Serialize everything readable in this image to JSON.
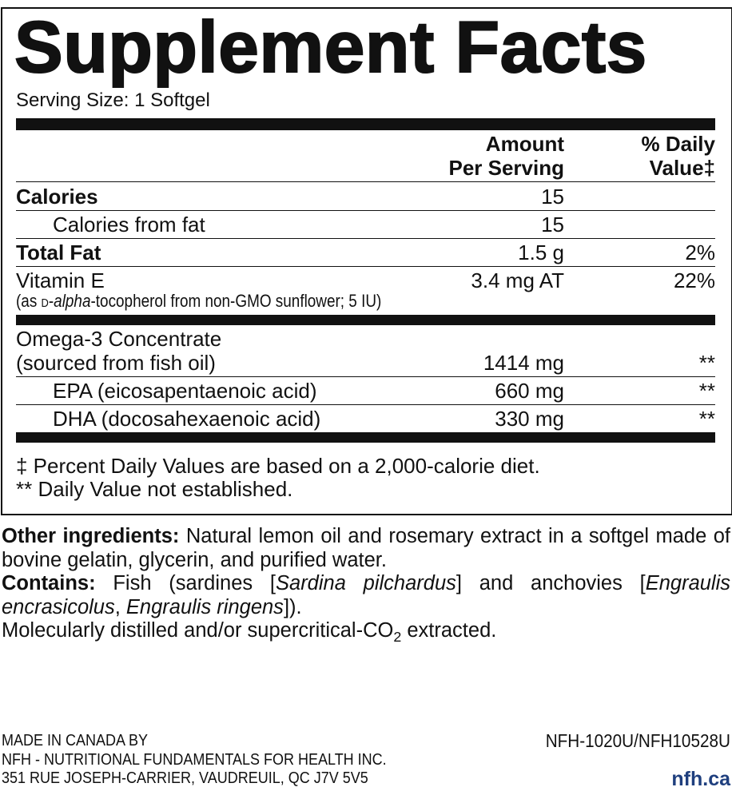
{
  "title": "Supplement Facts",
  "serving_size": "Serving Size: 1 Softgel",
  "columns": {
    "amount": [
      "Amount",
      "Per Serving"
    ],
    "daily_value": [
      "% Daily",
      "Value‡"
    ]
  },
  "rows": [
    {
      "label": [
        "Calories"
      ],
      "amount": "15",
      "bold": true
    },
    {
      "label": [
        "Calories from fat"
      ],
      "amount": "15",
      "indent": true
    },
    {
      "label": [
        "Total Fat"
      ],
      "amount": "1.5 g",
      "daily_value": "2%",
      "bold": true
    },
    {
      "label": [
        "Vitamin E"
      ],
      "amount": "3.4 mg AT",
      "daily_value": "22%",
      "separator": "thick",
      "note": [
        {
          "text": "(as "
        },
        {
          "text": "d",
          "smallcaps": true
        },
        {
          "text": "-"
        },
        {
          "text": "alpha",
          "italic": true
        },
        {
          "text": "-tocopherol from non-GMO sunflower; 5 IU)"
        }
      ]
    },
    {
      "label": [
        "Omega-3 Concentrate",
        "(sourced from fish oil)"
      ],
      "amount": "1414 mg",
      "daily_value": "**"
    },
    {
      "label": [
        "EPA (eicosapentaenoic acid)"
      ],
      "amount": "660 mg",
      "daily_value": "**",
      "indent": true
    },
    {
      "label": [
        "DHA (docosahexaenoic acid)"
      ],
      "amount": "330 mg",
      "daily_value": "**",
      "indent": true,
      "separator": "thick"
    }
  ],
  "footnotes": [
    "‡ Percent Daily Values are based on a 2,000-calorie diet.",
    "** Daily Value not established."
  ],
  "other_ingredients": {
    "label": "Other ingredients:",
    "text": "Natural lemon oil and rosemary extract in a softgel made of bovine gelatin, glycerin, and purified water."
  },
  "contains": {
    "label": "Contains:",
    "segments": [
      {
        "text": "Fish (sardines ["
      },
      {
        "text": "Sardina pilchardus",
        "italic": true
      },
      {
        "text": "] and anchovies ["
      },
      {
        "text": "Engraulis encrasicolus",
        "italic": true
      },
      {
        "text": ", "
      },
      {
        "text": "Engraulis ringens",
        "italic": true
      },
      {
        "text": "])."
      }
    ]
  },
  "extraction": [
    {
      "text": "Molecularly distilled and/or supercritical-CO"
    },
    {
      "text": "2",
      "sub": true
    },
    {
      "text": " extracted."
    }
  ],
  "footer": {
    "maker": [
      "MADE IN CANADA BY",
      "NFH - NUTRITIONAL FUNDAMENTALS FOR HEALTH INC.",
      "351 RUE JOSEPH-CARRIER, VAUDREUIL, QC  J7V 5V5"
    ],
    "codes": "NFH-1020U/NFH10528U",
    "website": "nfh.ca"
  }
}
